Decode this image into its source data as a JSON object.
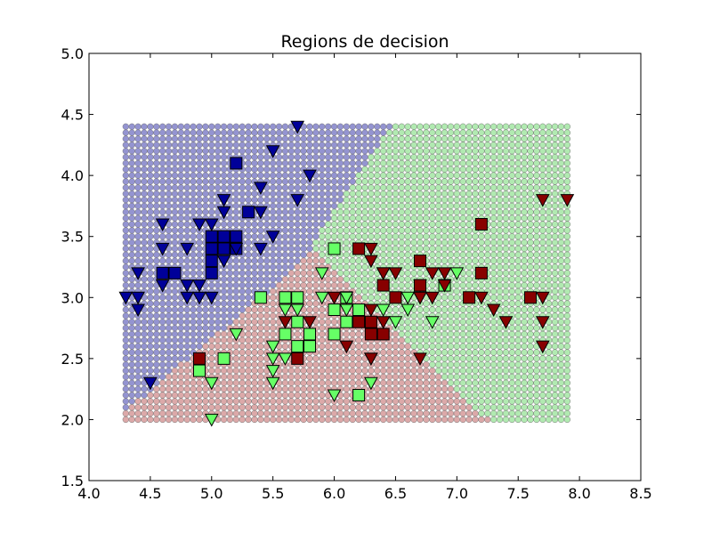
{
  "chart_data": {
    "type": "scatter",
    "title": "Regions de decision",
    "xlabel": "",
    "ylabel": "",
    "xlim": [
      4.0,
      8.5
    ],
    "ylim": [
      1.5,
      5.0
    ],
    "xticks": [
      "4.0",
      "4.5",
      "5.0",
      "5.5",
      "6.0",
      "6.5",
      "7.0",
      "7.5",
      "8.0",
      "8.5"
    ],
    "yticks": [
      "1.5",
      "2.0",
      "2.5",
      "3.0",
      "3.5",
      "4.0",
      "4.5",
      "5.0"
    ],
    "grid": false,
    "background_regions": {
      "x_range": [
        4.3,
        7.9
      ],
      "y_range": [
        2.0,
        4.4
      ],
      "step": 0.05,
      "class_colors": {
        "blue": "#8888cc",
        "green": "#a8e8a8",
        "red": "#d8a0a0"
      },
      "boundaries": {
        "blue_green": [
          [
            4.3,
            2.07
          ],
          [
            5.85,
            3.38
          ]
        ],
        "blue_red": [
          [
            5.8,
            3.4
          ],
          [
            6.45,
            4.4
          ]
        ],
        "green_red": [
          [
            5.8,
            3.4
          ],
          [
            7.25,
            2.0
          ]
        ]
      }
    },
    "series": [
      {
        "class": "blue",
        "marker": "square",
        "color": "#000099",
        "points": [
          [
            4.6,
            3.2
          ],
          [
            4.7,
            3.2
          ],
          [
            5.0,
            3.2
          ],
          [
            5.0,
            3.3
          ],
          [
            5.0,
            3.4
          ],
          [
            5.0,
            3.5
          ],
          [
            5.1,
            3.4
          ],
          [
            5.1,
            3.5
          ],
          [
            5.2,
            3.4
          ],
          [
            5.2,
            3.5
          ],
          [
            5.3,
            3.7
          ],
          [
            5.2,
            4.1
          ]
        ]
      },
      {
        "class": "blue",
        "marker": "triangle-down",
        "color": "#000099",
        "points": [
          [
            4.3,
            3.0
          ],
          [
            4.4,
            2.9
          ],
          [
            4.4,
            3.0
          ],
          [
            4.4,
            3.2
          ],
          [
            4.5,
            2.3
          ],
          [
            4.6,
            3.1
          ],
          [
            4.6,
            3.4
          ],
          [
            4.6,
            3.6
          ],
          [
            4.8,
            3.0
          ],
          [
            4.8,
            3.1
          ],
          [
            4.8,
            3.4
          ],
          [
            4.9,
            3.0
          ],
          [
            4.9,
            3.1
          ],
          [
            4.9,
            3.6
          ],
          [
            5.0,
            3.0
          ],
          [
            5.0,
            3.6
          ],
          [
            5.1,
            3.3
          ],
          [
            5.1,
            3.7
          ],
          [
            5.1,
            3.8
          ],
          [
            5.2,
            3.4
          ],
          [
            5.4,
            3.4
          ],
          [
            5.4,
            3.7
          ],
          [
            5.4,
            3.9
          ],
          [
            5.5,
            3.5
          ],
          [
            5.5,
            4.2
          ],
          [
            5.7,
            3.8
          ],
          [
            5.7,
            4.4
          ],
          [
            5.8,
            4.0
          ]
        ]
      },
      {
        "class": "green",
        "marker": "square",
        "color": "#66ff66",
        "points": [
          [
            4.9,
            2.4
          ],
          [
            5.1,
            2.5
          ],
          [
            5.4,
            3.0
          ],
          [
            5.6,
            2.7
          ],
          [
            5.6,
            3.0
          ],
          [
            5.7,
            2.6
          ],
          [
            5.7,
            2.8
          ],
          [
            5.7,
            3.0
          ],
          [
            5.8,
            2.6
          ],
          [
            5.8,
            2.7
          ],
          [
            6.0,
            2.7
          ],
          [
            6.0,
            2.9
          ],
          [
            6.0,
            3.4
          ],
          [
            6.1,
            2.8
          ],
          [
            6.1,
            3.0
          ],
          [
            6.2,
            2.2
          ],
          [
            6.2,
            2.9
          ],
          [
            6.9,
            3.1
          ]
        ]
      },
      {
        "class": "green",
        "marker": "triangle-down",
        "color": "#66ff66",
        "points": [
          [
            5.0,
            2.0
          ],
          [
            5.0,
            2.3
          ],
          [
            5.2,
            2.7
          ],
          [
            5.5,
            2.3
          ],
          [
            5.5,
            2.4
          ],
          [
            5.5,
            2.5
          ],
          [
            5.5,
            2.6
          ],
          [
            5.6,
            2.5
          ],
          [
            5.6,
            2.9
          ],
          [
            5.7,
            2.9
          ],
          [
            5.9,
            3.0
          ],
          [
            5.9,
            3.2
          ],
          [
            6.0,
            2.2
          ],
          [
            6.1,
            2.9
          ],
          [
            6.1,
            3.0
          ],
          [
            6.3,
            2.3
          ],
          [
            6.3,
            2.5
          ],
          [
            6.4,
            2.9
          ],
          [
            6.4,
            3.2
          ],
          [
            6.5,
            2.8
          ],
          [
            6.6,
            2.9
          ],
          [
            6.6,
            3.0
          ],
          [
            6.7,
            3.0
          ],
          [
            6.7,
            3.1
          ],
          [
            6.8,
            2.8
          ],
          [
            7.0,
            3.2
          ]
        ]
      },
      {
        "class": "red",
        "marker": "square",
        "color": "#880000",
        "points": [
          [
            4.9,
            2.5
          ],
          [
            5.7,
            2.5
          ],
          [
            6.2,
            2.8
          ],
          [
            6.2,
            3.4
          ],
          [
            6.3,
            2.7
          ],
          [
            6.3,
            2.8
          ],
          [
            6.4,
            2.7
          ],
          [
            6.4,
            3.1
          ],
          [
            6.5,
            3.0
          ],
          [
            6.7,
            3.1
          ],
          [
            6.7,
            3.3
          ],
          [
            7.1,
            3.0
          ],
          [
            7.2,
            3.2
          ],
          [
            7.2,
            3.6
          ],
          [
            7.6,
            3.0
          ]
        ]
      },
      {
        "class": "red",
        "marker": "triangle-down",
        "color": "#880000",
        "points": [
          [
            5.6,
            2.8
          ],
          [
            5.8,
            2.8
          ],
          [
            6.0,
            3.0
          ],
          [
            6.1,
            2.6
          ],
          [
            6.3,
            2.5
          ],
          [
            6.3,
            2.9
          ],
          [
            6.3,
            3.3
          ],
          [
            6.3,
            3.4
          ],
          [
            6.4,
            2.8
          ],
          [
            6.4,
            3.2
          ],
          [
            6.5,
            3.2
          ],
          [
            6.7,
            2.5
          ],
          [
            6.7,
            3.0
          ],
          [
            6.8,
            3.0
          ],
          [
            6.8,
            3.2
          ],
          [
            6.9,
            3.1
          ],
          [
            6.9,
            3.2
          ],
          [
            7.2,
            3.0
          ],
          [
            7.3,
            2.9
          ],
          [
            7.4,
            2.8
          ],
          [
            7.7,
            2.6
          ],
          [
            7.7,
            2.8
          ],
          [
            7.7,
            3.0
          ],
          [
            7.7,
            3.8
          ],
          [
            7.9,
            3.8
          ]
        ]
      }
    ]
  }
}
